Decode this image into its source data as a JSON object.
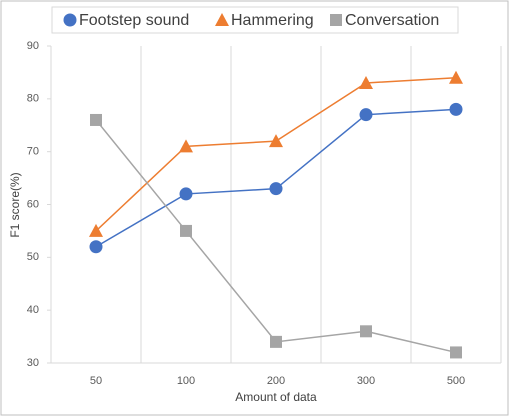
{
  "chart_data": {
    "type": "line",
    "x_label": "Amount of data",
    "y_label": "F1 score(%)",
    "categories": [
      "50",
      "100",
      "200",
      "300",
      "500"
    ],
    "series": [
      {
        "name": "Footstep sound",
        "color": "#4472c4",
        "marker": "circle",
        "values": [
          52,
          62,
          63,
          77,
          78
        ]
      },
      {
        "name": "Hammering",
        "color": "#ed7d31",
        "marker": "triangle",
        "values": [
          55,
          71,
          72,
          83,
          84
        ]
      },
      {
        "name": "Conversation",
        "color": "#a5a5a5",
        "marker": "square",
        "values": [
          76,
          55,
          34,
          36,
          32
        ]
      }
    ],
    "ylim": [
      30,
      90
    ],
    "yticks": [
      30,
      40,
      50,
      60,
      70,
      80,
      90
    ],
    "legend": "top"
  }
}
